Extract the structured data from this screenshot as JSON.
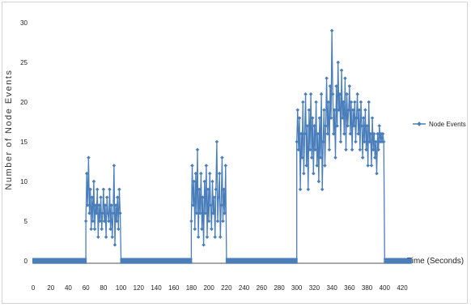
{
  "chart_data": {
    "type": "line",
    "xlabel": "Time (Seconds)",
    "ylabel": "Number of Node Events",
    "xlim": [
      0,
      420
    ],
    "ylim": [
      0,
      30
    ],
    "xticks": [
      0,
      20,
      40,
      60,
      80,
      100,
      120,
      140,
      160,
      180,
      200,
      220,
      240,
      260,
      280,
      300,
      320,
      340,
      360,
      380,
      400,
      420
    ],
    "yticks": [
      0,
      5,
      10,
      15,
      20,
      25,
      30
    ],
    "legend_position": "right",
    "series": [
      {
        "name": "Node Events",
        "color": "#4a7ebb",
        "points": [
          [
            0,
            0
          ],
          [
            60,
            0
          ],
          [
            60,
            5
          ],
          [
            61,
            11
          ],
          [
            62,
            7
          ],
          [
            63,
            13
          ],
          [
            64,
            6
          ],
          [
            65,
            9
          ],
          [
            66,
            4
          ],
          [
            67,
            8
          ],
          [
            68,
            5
          ],
          [
            69,
            10
          ],
          [
            70,
            4
          ],
          [
            71,
            7
          ],
          [
            72,
            6
          ],
          [
            73,
            9
          ],
          [
            74,
            3
          ],
          [
            75,
            7
          ],
          [
            76,
            5
          ],
          [
            77,
            8
          ],
          [
            78,
            4
          ],
          [
            79,
            6
          ],
          [
            80,
            9
          ],
          [
            81,
            5
          ],
          [
            82,
            7
          ],
          [
            83,
            3
          ],
          [
            84,
            8
          ],
          [
            85,
            6
          ],
          [
            86,
            5
          ],
          [
            87,
            9
          ],
          [
            88,
            4
          ],
          [
            89,
            7
          ],
          [
            90,
            3
          ],
          [
            91,
            6
          ],
          [
            92,
            12
          ],
          [
            93,
            2
          ],
          [
            94,
            7
          ],
          [
            95,
            5
          ],
          [
            96,
            8
          ],
          [
            97,
            4
          ],
          [
            98,
            9
          ],
          [
            99,
            6
          ],
          [
            100,
            0
          ],
          [
            180,
            0
          ],
          [
            180,
            5
          ],
          [
            181,
            12
          ],
          [
            182,
            7
          ],
          [
            183,
            10
          ],
          [
            184,
            4
          ],
          [
            185,
            11
          ],
          [
            186,
            6
          ],
          [
            187,
            14
          ],
          [
            188,
            3
          ],
          [
            189,
            9
          ],
          [
            190,
            6
          ],
          [
            191,
            11
          ],
          [
            192,
            4
          ],
          [
            193,
            8
          ],
          [
            194,
            2
          ],
          [
            195,
            10
          ],
          [
            196,
            6
          ],
          [
            197,
            12
          ],
          [
            198,
            3
          ],
          [
            199,
            9
          ],
          [
            200,
            5
          ],
          [
            201,
            11
          ],
          [
            202,
            7
          ],
          [
            203,
            4
          ],
          [
            204,
            10
          ],
          [
            205,
            6
          ],
          [
            206,
            8
          ],
          [
            207,
            3
          ],
          [
            208,
            9
          ],
          [
            209,
            15
          ],
          [
            210,
            5
          ],
          [
            211,
            8
          ],
          [
            212,
            11
          ],
          [
            213,
            3
          ],
          [
            214,
            7
          ],
          [
            215,
            13
          ],
          [
            216,
            5
          ],
          [
            217,
            9
          ],
          [
            218,
            6
          ],
          [
            219,
            12
          ],
          [
            220,
            0
          ],
          [
            300,
            0
          ],
          [
            300,
            15
          ],
          [
            301,
            19
          ],
          [
            302,
            14
          ],
          [
            303,
            18
          ],
          [
            304,
            9
          ],
          [
            305,
            16
          ],
          [
            306,
            13
          ],
          [
            307,
            20
          ],
          [
            308,
            11
          ],
          [
            309,
            16
          ],
          [
            310,
            21
          ],
          [
            311,
            12
          ],
          [
            312,
            17
          ],
          [
            313,
            9
          ],
          [
            314,
            19
          ],
          [
            315,
            14
          ],
          [
            316,
            21
          ],
          [
            317,
            13
          ],
          [
            318,
            18
          ],
          [
            319,
            11
          ],
          [
            320,
            17
          ],
          [
            321,
            14
          ],
          [
            322,
            20
          ],
          [
            323,
            12
          ],
          [
            324,
            16
          ],
          [
            325,
            10
          ],
          [
            326,
            18
          ],
          [
            327,
            13
          ],
          [
            328,
            21
          ],
          [
            329,
            9
          ],
          [
            330,
            15
          ],
          [
            331,
            19
          ],
          [
            332,
            12
          ],
          [
            333,
            17
          ],
          [
            334,
            23
          ],
          [
            335,
            16
          ],
          [
            336,
            20
          ],
          [
            337,
            14
          ],
          [
            338,
            22
          ],
          [
            339,
            18
          ],
          [
            340,
            29
          ],
          [
            341,
            21
          ],
          [
            342,
            16
          ],
          [
            343,
            19
          ],
          [
            344,
            13
          ],
          [
            345,
            22
          ],
          [
            346,
            17
          ],
          [
            347,
            25
          ],
          [
            348,
            19
          ],
          [
            349,
            21
          ],
          [
            350,
            15
          ],
          [
            351,
            24
          ],
          [
            352,
            18
          ],
          [
            353,
            20
          ],
          [
            354,
            16
          ],
          [
            355,
            23
          ],
          [
            356,
            14
          ],
          [
            357,
            21
          ],
          [
            358,
            17
          ],
          [
            359,
            19
          ],
          [
            360,
            22
          ],
          [
            361,
            16
          ],
          [
            362,
            20
          ],
          [
            363,
            14
          ],
          [
            364,
            19
          ],
          [
            365,
            17
          ],
          [
            366,
            20
          ],
          [
            367,
            15
          ],
          [
            368,
            18
          ],
          [
            369,
            21
          ],
          [
            370,
            16
          ],
          [
            371,
            19
          ],
          [
            372,
            14
          ],
          [
            373,
            20
          ],
          [
            374,
            17
          ],
          [
            375,
            13
          ],
          [
            376,
            18
          ],
          [
            377,
            15
          ],
          [
            378,
            19
          ],
          [
            379,
            14
          ],
          [
            380,
            17
          ],
          [
            381,
            12
          ],
          [
            382,
            20
          ],
          [
            383,
            15
          ],
          [
            384,
            16
          ],
          [
            385,
            12
          ],
          [
            386,
            18
          ],
          [
            387,
            14
          ],
          [
            388,
            16
          ],
          [
            389,
            13
          ],
          [
            390,
            15
          ],
          [
            391,
            11
          ],
          [
            392,
            16
          ],
          [
            393,
            14
          ],
          [
            394,
            17
          ],
          [
            395,
            15
          ],
          [
            396,
            16
          ],
          [
            397,
            15
          ],
          [
            398,
            16
          ],
          [
            399,
            15
          ],
          [
            400,
            0
          ],
          [
            400,
            0
          ],
          [
            430,
            0
          ]
        ]
      }
    ]
  }
}
